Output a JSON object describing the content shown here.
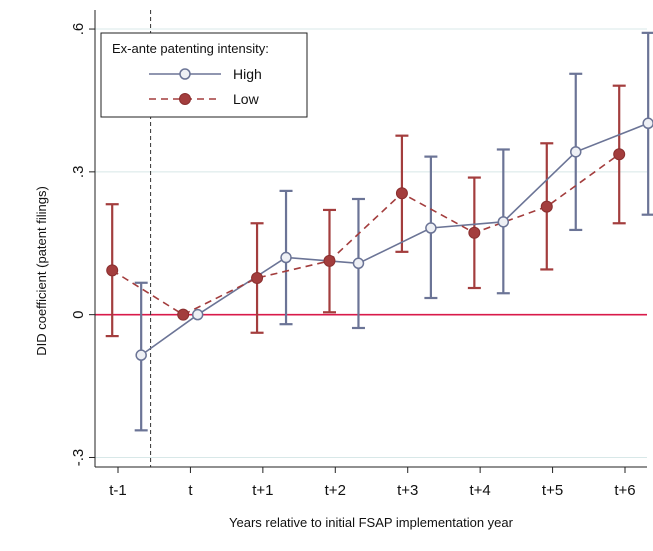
{
  "chart_data": {
    "type": "line",
    "title": "",
    "xlabel": "Years relative to initial FSAP implementation year",
    "ylabel": "DID coefficient (patent filings)",
    "categories": [
      "t-1",
      "t",
      "t+1",
      "t+2",
      "t+3",
      "t+4",
      "t+5",
      "t+6"
    ],
    "y_ticks": [
      {
        "value": 0.6,
        "label": ".6"
      },
      {
        "value": 0.3,
        "label": ".3"
      },
      {
        "value": 0,
        "label": "0"
      },
      {
        "value": -0.3,
        "label": "-.3"
      }
    ],
    "ylim": [
      -0.32,
      0.64
    ],
    "grid": true,
    "legend": {
      "title": "Ex-ante patenting intensity:",
      "placement": "top-left"
    },
    "event_marker": {
      "category": "t",
      "style": "dashed"
    },
    "reference_line": {
      "y": 0,
      "color": "#d91a4a"
    },
    "series": [
      {
        "name": "High",
        "color": "#6b7496",
        "marker": "hollow-circle",
        "line_style": "solid",
        "values": [
          -0.085,
          0.0,
          0.12,
          0.108,
          0.182,
          0.195,
          0.342,
          0.402
        ],
        "ci_low": [
          -0.243,
          null,
          -0.02,
          -0.028,
          0.035,
          0.045,
          0.178,
          0.21
        ],
        "ci_high": [
          0.067,
          null,
          0.26,
          0.243,
          0.332,
          0.347,
          0.506,
          0.592
        ]
      },
      {
        "name": "Low",
        "color": "#a33d3d",
        "marker": "filled-circle",
        "line_style": "dashed",
        "values": [
          0.093,
          0.0,
          0.077,
          0.113,
          0.255,
          0.172,
          0.227,
          0.337
        ],
        "ci_low": [
          -0.045,
          null,
          -0.038,
          0.005,
          0.132,
          0.056,
          0.095,
          0.192
        ],
        "ci_high": [
          0.232,
          null,
          0.192,
          0.22,
          0.376,
          0.288,
          0.36,
          0.481
        ]
      }
    ]
  }
}
